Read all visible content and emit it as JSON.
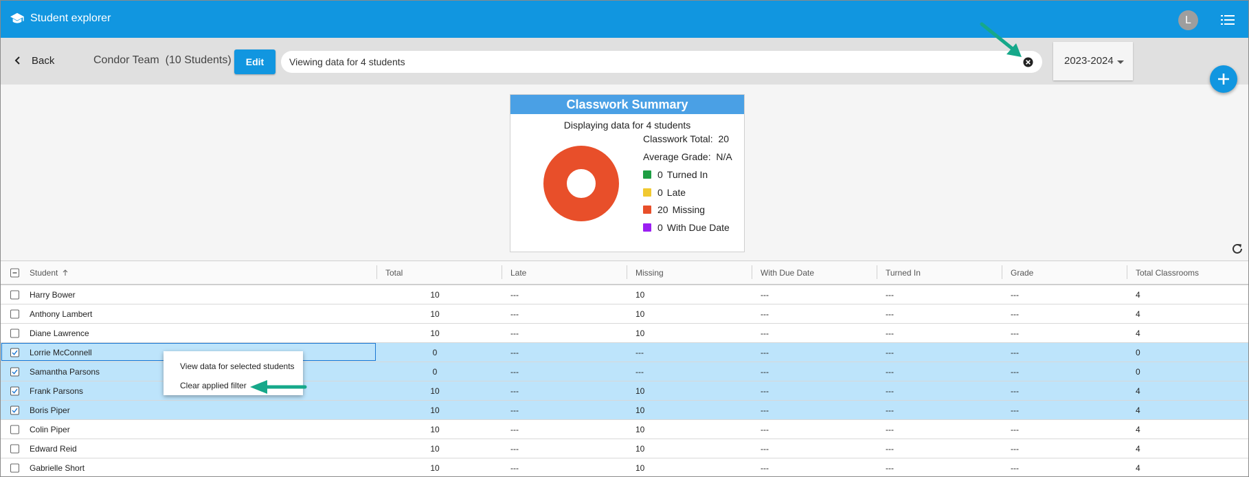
{
  "app": {
    "title": "Student explorer",
    "avatar_letter": "L",
    "brand_color": "#1196e0"
  },
  "icons": {
    "app": "graduation-cap-icon",
    "menu": "list-menu-icon",
    "back": "chevron-left-icon",
    "clear_filter": "close-circle-icon",
    "fab": "plus-icon",
    "refresh": "refresh-icon",
    "sort": "arrow-up-icon"
  },
  "toolbar": {
    "back_label": "Back",
    "team_label": "Condor Team  (10 Students)",
    "edit_label": "Edit",
    "filter_text": "Viewing data for 4 students",
    "year": "2023-2024"
  },
  "summary": {
    "title": "Classwork Summary",
    "subtitle": "Displaying data for 4 students",
    "total_label": "Classwork Total:",
    "total_value": "20",
    "avg_label": "Average Grade:",
    "avg_value": "N/A",
    "legend": [
      {
        "count": "0",
        "label": "Turned In",
        "color": "#1e9e43"
      },
      {
        "count": "0",
        "label": "Late",
        "color": "#f1c931"
      },
      {
        "count": "20",
        "label": "Missing",
        "color": "#e84f2a"
      },
      {
        "count": "0",
        "label": "With Due Date",
        "color": "#9b1ff2"
      }
    ]
  },
  "table": {
    "columns": [
      "Student",
      "Total",
      "Late",
      "Missing",
      "With Due Date",
      "Turned In",
      "Grade",
      "Total Classrooms"
    ],
    "sort_column": "Student",
    "sort_direction": "ascending",
    "rows": [
      {
        "name": "Harry Bower",
        "total": "10",
        "late": "---",
        "missing": "10",
        "due": "---",
        "turned_in": "---",
        "grade": "---",
        "classrooms": "4",
        "checked": false
      },
      {
        "name": "Anthony Lambert",
        "total": "10",
        "late": "---",
        "missing": "10",
        "due": "---",
        "turned_in": "---",
        "grade": "---",
        "classrooms": "4",
        "checked": false
      },
      {
        "name": "Diane Lawrence",
        "total": "10",
        "late": "---",
        "missing": "10",
        "due": "---",
        "turned_in": "---",
        "grade": "---",
        "classrooms": "4",
        "checked": false
      },
      {
        "name": "Lorrie McConnell",
        "total": "0",
        "late": "---",
        "missing": "---",
        "due": "---",
        "turned_in": "---",
        "grade": "---",
        "classrooms": "0",
        "checked": true
      },
      {
        "name": "Samantha Parsons",
        "total": "0",
        "late": "---",
        "missing": "---",
        "due": "---",
        "turned_in": "---",
        "grade": "---",
        "classrooms": "0",
        "checked": true
      },
      {
        "name": "Frank Parsons",
        "total": "10",
        "late": "---",
        "missing": "10",
        "due": "---",
        "turned_in": "---",
        "grade": "---",
        "classrooms": "4",
        "checked": true
      },
      {
        "name": "Boris Piper",
        "total": "10",
        "late": "---",
        "missing": "10",
        "due": "---",
        "turned_in": "---",
        "grade": "---",
        "classrooms": "4",
        "checked": true
      },
      {
        "name": "Colin Piper",
        "total": "10",
        "late": "---",
        "missing": "10",
        "due": "---",
        "turned_in": "---",
        "grade": "---",
        "classrooms": "4",
        "checked": false
      },
      {
        "name": "Edward Reid",
        "total": "10",
        "late": "---",
        "missing": "10",
        "due": "---",
        "turned_in": "---",
        "grade": "---",
        "classrooms": "4",
        "checked": false
      },
      {
        "name": "Gabrielle Short",
        "total": "10",
        "late": "---",
        "missing": "10",
        "due": "---",
        "turned_in": "---",
        "grade": "---",
        "classrooms": "4",
        "checked": false
      }
    ]
  },
  "context_menu": {
    "items": [
      "View data for selected students",
      "Clear applied filter"
    ]
  },
  "annotation_color": "#16a88a"
}
